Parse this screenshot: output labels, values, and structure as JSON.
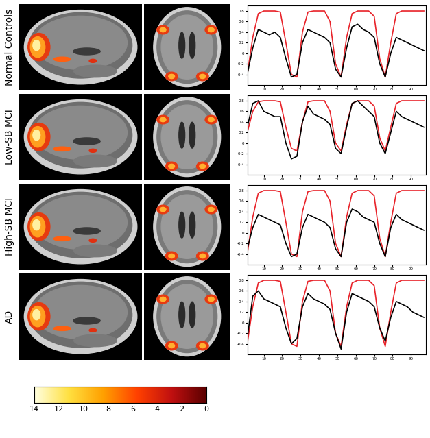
{
  "chart_data": [
    {
      "type": "line",
      "title": "Normal Controls",
      "x": [
        1,
        4,
        7,
        10,
        13,
        16,
        19,
        22,
        25,
        28,
        31,
        34,
        37,
        40,
        43,
        46,
        49,
        52,
        55,
        58,
        61,
        64,
        67,
        70,
        73,
        76,
        79,
        82,
        85,
        88,
        91,
        94,
        97
      ],
      "series": [
        {
          "color": "#e8232a",
          "values": [
            -0.4,
            0.3,
            0.75,
            0.8,
            0.8,
            0.8,
            0.78,
            0.2,
            -0.4,
            -0.45,
            0.4,
            0.78,
            0.8,
            0.8,
            0.8,
            0.6,
            -0.2,
            -0.45,
            0.3,
            0.75,
            0.8,
            0.8,
            0.8,
            0.7,
            -0.1,
            -0.45,
            0.2,
            0.75,
            0.8,
            0.8,
            0.8,
            0.8,
            0.8
          ]
        },
        {
          "color": "#000000",
          "values": [
            -0.4,
            0.1,
            0.45,
            0.4,
            0.35,
            0.4,
            0.3,
            -0.1,
            -0.45,
            -0.4,
            0.2,
            0.45,
            0.4,
            0.35,
            0.3,
            0.2,
            -0.3,
            -0.45,
            0.1,
            0.5,
            0.55,
            0.45,
            0.4,
            0.3,
            -0.2,
            -0.45,
            0.0,
            0.3,
            0.25,
            0.2,
            0.15,
            0.1,
            0.05
          ]
        }
      ],
      "xlim": [
        1,
        98
      ],
      "xticks": [
        10,
        20,
        30,
        40,
        50,
        60,
        70,
        80,
        90
      ],
      "ylim": [
        -0.6,
        0.9
      ],
      "yticks": [
        -0.4,
        -0.2,
        0,
        0.2,
        0.4,
        0.6,
        0.8
      ]
    },
    {
      "type": "line",
      "title": "Low-SB MCI",
      "x": [
        1,
        4,
        7,
        10,
        13,
        16,
        19,
        22,
        25,
        28,
        31,
        34,
        37,
        40,
        43,
        46,
        49,
        52,
        55,
        58,
        61,
        64,
        67,
        70,
        73,
        76,
        79,
        82,
        85,
        88,
        91,
        94,
        97
      ],
      "series": [
        {
          "color": "#e8232a",
          "values": [
            0.2,
            0.6,
            0.78,
            0.8,
            0.8,
            0.8,
            0.78,
            0.3,
            -0.1,
            -0.15,
            0.4,
            0.78,
            0.8,
            0.8,
            0.8,
            0.6,
            0.0,
            -0.15,
            0.35,
            0.75,
            0.8,
            0.8,
            0.8,
            0.7,
            0.1,
            -0.15,
            0.3,
            0.75,
            0.8,
            0.8,
            0.8,
            0.8,
            0.8
          ]
        },
        {
          "color": "#000000",
          "values": [
            0.3,
            0.75,
            0.8,
            0.6,
            0.55,
            0.5,
            0.5,
            0.0,
            -0.3,
            -0.25,
            0.4,
            0.7,
            0.55,
            0.5,
            0.45,
            0.35,
            -0.1,
            -0.2,
            0.3,
            0.75,
            0.8,
            0.7,
            0.6,
            0.5,
            0.0,
            -0.2,
            0.2,
            0.6,
            0.5,
            0.45,
            0.4,
            0.35,
            0.3
          ]
        }
      ],
      "xlim": [
        1,
        98
      ],
      "xticks": [
        10,
        20,
        30,
        40,
        50,
        60,
        70,
        80,
        90
      ],
      "ylim": [
        -0.6,
        0.9
      ],
      "yticks": [
        -0.4,
        -0.2,
        0,
        0.2,
        0.4,
        0.6,
        0.8
      ]
    },
    {
      "type": "line",
      "title": "High-SB MCI",
      "x": [
        1,
        4,
        7,
        10,
        13,
        16,
        19,
        22,
        25,
        28,
        31,
        34,
        37,
        40,
        43,
        46,
        49,
        52,
        55,
        58,
        61,
        64,
        67,
        70,
        73,
        76,
        79,
        82,
        85,
        88,
        91,
        94,
        97
      ],
      "series": [
        {
          "color": "#e8232a",
          "values": [
            -0.4,
            0.3,
            0.75,
            0.8,
            0.8,
            0.8,
            0.78,
            0.2,
            -0.4,
            -0.45,
            0.4,
            0.78,
            0.8,
            0.8,
            0.8,
            0.6,
            -0.2,
            -0.45,
            0.3,
            0.75,
            0.8,
            0.8,
            0.8,
            0.7,
            -0.1,
            -0.45,
            0.2,
            0.75,
            0.8,
            0.8,
            0.8,
            0.8,
            0.8
          ]
        },
        {
          "color": "#000000",
          "values": [
            -0.3,
            0.1,
            0.35,
            0.3,
            0.25,
            0.2,
            0.15,
            -0.2,
            -0.45,
            -0.4,
            0.1,
            0.35,
            0.3,
            0.25,
            0.2,
            0.1,
            -0.3,
            -0.45,
            0.2,
            0.45,
            0.4,
            0.3,
            0.25,
            0.2,
            -0.2,
            -0.45,
            0.1,
            0.35,
            0.25,
            0.2,
            0.15,
            0.1,
            0.05
          ]
        }
      ],
      "xlim": [
        1,
        98
      ],
      "xticks": [
        10,
        20,
        30,
        40,
        50,
        60,
        70,
        80,
        90
      ],
      "ylim": [
        -0.6,
        0.9
      ],
      "yticks": [
        -0.4,
        -0.2,
        0,
        0.2,
        0.4,
        0.6,
        0.8
      ]
    },
    {
      "type": "line",
      "title": "AD",
      "x": [
        1,
        4,
        7,
        10,
        13,
        16,
        19,
        22,
        25,
        28,
        31,
        34,
        37,
        40,
        43,
        46,
        49,
        52,
        55,
        58,
        61,
        64,
        67,
        70,
        73,
        76,
        79,
        82,
        85,
        88,
        91,
        94,
        97
      ],
      "series": [
        {
          "color": "#e8232a",
          "values": [
            -0.4,
            0.3,
            0.75,
            0.8,
            0.8,
            0.8,
            0.78,
            0.2,
            -0.4,
            -0.45,
            0.4,
            0.78,
            0.8,
            0.8,
            0.8,
            0.6,
            -0.2,
            -0.45,
            0.3,
            0.75,
            0.8,
            0.8,
            0.8,
            0.7,
            -0.1,
            -0.45,
            0.2,
            0.75,
            0.8,
            0.8,
            0.8,
            0.8,
            0.8
          ]
        },
        {
          "color": "#000000",
          "values": [
            -0.3,
            0.5,
            0.6,
            0.45,
            0.4,
            0.35,
            0.3,
            -0.1,
            -0.4,
            -0.3,
            0.3,
            0.55,
            0.45,
            0.4,
            0.35,
            0.25,
            -0.2,
            -0.5,
            0.2,
            0.55,
            0.5,
            0.45,
            0.4,
            0.3,
            -0.1,
            -0.35,
            0.1,
            0.4,
            0.35,
            0.3,
            0.2,
            0.15,
            0.1
          ]
        }
      ],
      "xlim": [
        1,
        98
      ],
      "xticks": [
        10,
        20,
        30,
        40,
        50,
        60,
        70,
        80,
        90
      ],
      "ylim": [
        -0.6,
        0.9
      ],
      "yticks": [
        -0.4,
        -0.2,
        0,
        0.2,
        0.4,
        0.6,
        0.8
      ]
    }
  ],
  "colorbar": {
    "range": [
      14,
      0
    ],
    "ticks": [
      14,
      12,
      10,
      8,
      6,
      4,
      2,
      0
    ]
  }
}
